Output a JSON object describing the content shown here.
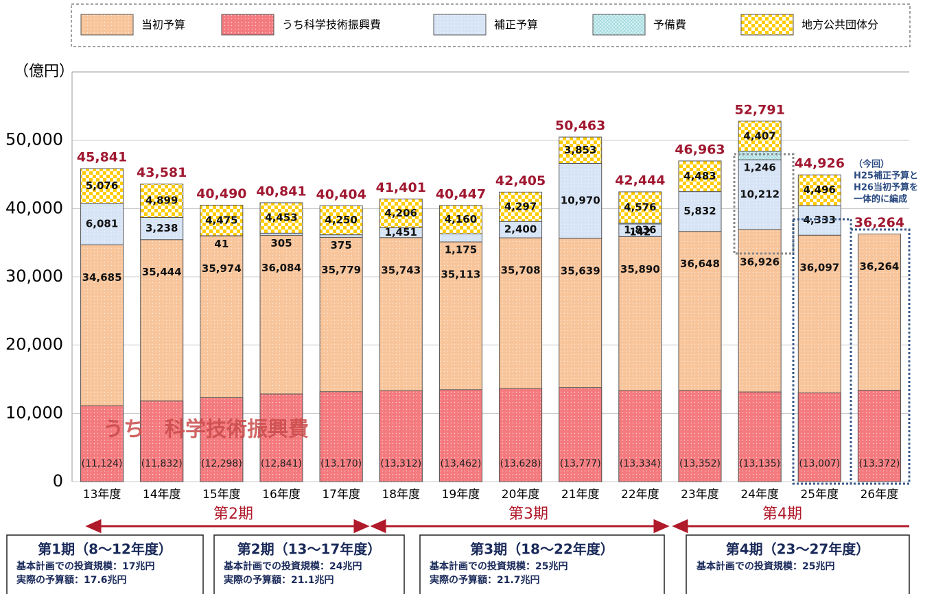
{
  "chart_data": {
    "type": "bar",
    "y_label": "（億円）",
    "categories": [
      "13年度",
      "14年度",
      "15年度",
      "16年度",
      "17年度",
      "18年度",
      "19年度",
      "20年度",
      "21年度",
      "22年度",
      "23年度",
      "24年度",
      "25年度",
      "26年度"
    ],
    "ylim": [
      0,
      60000
    ],
    "yticks": [
      0,
      {
        "value": 10000,
        "label": "10,000"
      },
      {
        "value": 20000,
        "label": "20,000"
      },
      {
        "value": 30000,
        "label": "30,000"
      },
      {
        "value": 40000,
        "label": "40,000"
      },
      {
        "value": 50000,
        "label": "50,000"
      }
    ],
    "grid": true,
    "series": [
      {
        "name": "当初予算",
        "color": "#f8c49a",
        "values": [
          34685,
          35444,
          35974,
          36084,
          35779,
          35743,
          35113,
          35708,
          35639,
          35890,
          36648,
          36926,
          36097,
          36264
        ],
        "value_labels": [
          "34,685",
          "35,444",
          "35,974",
          "36,084",
          "35,779",
          "35,743",
          "35,113",
          "35,708",
          "35,639",
          "35,890",
          "36,648",
          "36,926",
          "36,097",
          "36,264"
        ]
      },
      {
        "name": "うち科学技術振興費",
        "color": "#f47a7e",
        "values": [
          11124,
          11832,
          12298,
          12841,
          13170,
          13312,
          13462,
          13628,
          13777,
          13334,
          13352,
          13135,
          13007,
          13372
        ],
        "value_labels": [
          "(11,124)",
          "(11,832)",
          "(12,298)",
          "(12,841)",
          "(13,170)",
          "(13,312)",
          "(13,462)",
          "(13,628)",
          "(13,777)",
          "(13,334)",
          "(13,352)",
          "(13,135)",
          "(13,007)",
          "(13,372)"
        ]
      },
      {
        "name": "補正予算",
        "color": "#d6e4f6",
        "values": [
          6081,
          3238,
          41,
          305,
          375,
          1451,
          1175,
          2400,
          10970,
          1836,
          5832,
          10212,
          4333,
          null
        ],
        "value_labels": [
          "6,081",
          "3,238",
          "41",
          "305",
          "375",
          "1,451",
          "1,175",
          "2,400",
          "10,970",
          "1,836",
          "5,832",
          "10,212",
          "4,333",
          null
        ]
      },
      {
        "name": "予備費",
        "color": "#d2f0f4",
        "values": [
          null,
          null,
          null,
          null,
          null,
          null,
          null,
          null,
          null,
          142,
          null,
          1246,
          null,
          null
        ],
        "value_labels": [
          null,
          null,
          null,
          null,
          null,
          null,
          null,
          null,
          null,
          "142",
          null,
          "1,246",
          null,
          null
        ]
      },
      {
        "name": "地方公共団体分",
        "color": "#ffcc00",
        "values": [
          5076,
          4899,
          4475,
          4453,
          4250,
          4206,
          4160,
          4297,
          3853,
          4576,
          4483,
          4407,
          4496,
          null
        ],
        "value_labels": [
          "5,076",
          "4,899",
          "4,475",
          "4,453",
          "4,250",
          "4,206",
          "4,160",
          "4,297",
          "3,853",
          "4,576",
          "4,483",
          "4,407",
          "4,496",
          null
        ]
      }
    ],
    "totals": [
      45841,
      43581,
      40490,
      40841,
      40404,
      41401,
      40447,
      42405,
      50463,
      42444,
      46963,
      52791,
      44926,
      36264
    ],
    "total_labels": [
      "45,841",
      "43,581",
      "40,490",
      "40,841",
      "40,404",
      "41,401",
      "40,447",
      "42,405",
      "50,463",
      "42,444",
      "46,963",
      "52,791",
      "44,926",
      "36,264"
    ],
    "overlay_label": "うち　科学技術振興費",
    "note": [
      "（今回）",
      "H25補正予算と",
      "H26当初予算を",
      "一体的に編成"
    ],
    "periods": [
      "第2期",
      "第3期",
      "第4期"
    ],
    "boxes": [
      {
        "title": "第1期（8～12年度）",
        "lines": [
          "基本計画での投資規模：17兆円",
          "実際の予算額：17.6兆円"
        ]
      },
      {
        "title": "第2期（13～17年度）",
        "lines": [
          "基本計画での投資規模：24兆円",
          "実際の予算額：21.1兆円"
        ]
      },
      {
        "title": "第3期（18～22年度）",
        "lines": [
          "基本計画での投資規模：25兆円",
          "実際の予算額：21.7兆円"
        ]
      },
      {
        "title": "第4期（23～27年度）",
        "lines": [
          "基本計画での投資規模：25兆円"
        ]
      }
    ]
  }
}
